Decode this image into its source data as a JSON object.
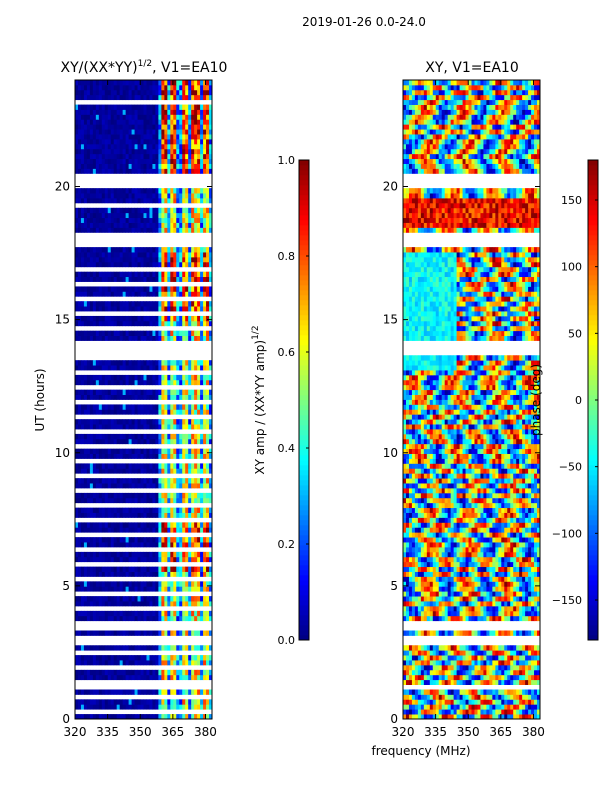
{
  "suptitle": "2019-01-26 0.0-24.0",
  "shared_xlabel": "frequency (MHz)",
  "colors": {
    "jet": [
      "#00007f",
      "#0000ff",
      "#007fff",
      "#00ffff",
      "#7fff7f",
      "#ffff00",
      "#ff7f00",
      "#ff0000",
      "#7f0000"
    ],
    "background": "#ffffff",
    "frame": "#000000"
  },
  "chart_data": [
    {
      "type": "heatmap",
      "title": "XY/(XX*YY)",
      "title_exponent": "1/2",
      "title_suffix": ", V1=EA10",
      "xlabel": "",
      "ylabel": "UT (hours)",
      "xlim": [
        320,
        383
      ],
      "ylim": [
        0,
        24
      ],
      "xticks": [
        320,
        335,
        350,
        365,
        380
      ],
      "yticks": [
        0,
        5,
        10,
        15,
        20
      ],
      "base_value": 0.0,
      "hot_channels_mhz": [
        [
          360,
          362
        ],
        [
          364,
          367
        ],
        [
          369,
          372
        ],
        [
          374,
          377
        ],
        [
          379,
          381
        ]
      ],
      "hot_value_range": [
        0.4,
        1.0
      ],
      "band_gaps_hours": [
        [
          1.15,
          1.35
        ],
        [
          2.7,
          3.05
        ],
        [
          3.3,
          3.6
        ],
        [
          13.7,
          14.2
        ],
        [
          17.7,
          18.2
        ],
        [
          19.2,
          19.3
        ],
        [
          19.9,
          20.5
        ],
        [
          20.8,
          20.9
        ],
        [
          22.1,
          22.2
        ],
        [
          23.0,
          23.2
        ]
      ],
      "colorbar": {
        "label": "XY amp / (XX*YY amp)",
        "label_exponent": "1/2",
        "vmin": 0.0,
        "vmax": 1.0,
        "ticks": [
          "0.0",
          "0.2",
          "0.4",
          "0.6",
          "0.8",
          "1.0"
        ]
      }
    },
    {
      "type": "heatmap",
      "title": "XY, V1=EA10",
      "xlabel": "frequency (MHz)",
      "ylabel": "",
      "xlim": [
        320,
        383
      ],
      "ylim": [
        0,
        24
      ],
      "xticks": [
        320,
        335,
        350,
        365,
        380
      ],
      "yticks": [
        0,
        5,
        10,
        15,
        20
      ],
      "value_range": [
        -180,
        180
      ],
      "band_gaps_hours": [
        [
          1.15,
          1.35
        ],
        [
          2.7,
          3.05
        ],
        [
          3.3,
          3.6
        ],
        [
          13.7,
          14.2
        ],
        [
          17.7,
          18.2
        ],
        [
          19.9,
          20.5
        ],
        [
          22.1,
          22.2
        ]
      ],
      "colorbar": {
        "label": "phase (deg)",
        "vmin": -180,
        "vmax": 180,
        "ticks": [
          "−150",
          "−100",
          "−50",
          "0",
          "50",
          "100",
          "150"
        ]
      }
    }
  ]
}
